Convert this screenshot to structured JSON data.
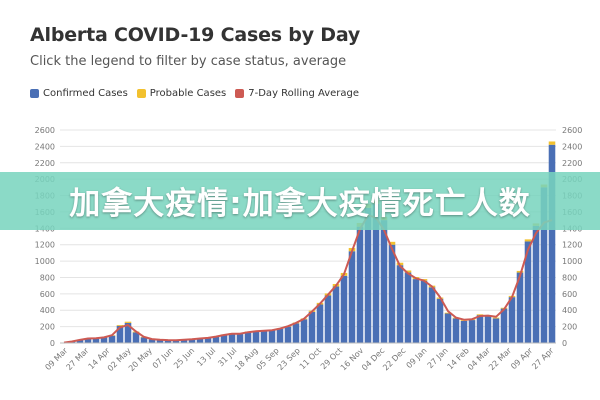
{
  "chart_data": {
    "type": "bar",
    "title": "Alberta COVID-19 Cases by Day",
    "subtitle": "Click the legend to filter by case status, average",
    "legend_position": "top-left",
    "grid": true,
    "ylim": [
      0,
      2600
    ],
    "y_ticks": [
      0,
      200,
      400,
      600,
      800,
      1000,
      1200,
      1400,
      1600,
      1800,
      2000,
      2200,
      2400,
      2600
    ],
    "x_tick_labels": [
      "09 Mar",
      "27 Mar",
      "14 Apr",
      "02 May",
      "20 May",
      "07 Jun",
      "25 Jun",
      "13 Jul",
      "31 Jul",
      "18 Aug",
      "05 Sep",
      "23 Sep",
      "11 Oct",
      "29 Oct",
      "16 Nov",
      "04 Dec",
      "22 Dec",
      "09 Jan",
      "27 Jan",
      "14 Feb",
      "04 Mar",
      "22 Mar",
      "09 Apr",
      "27 Apr"
    ],
    "series": [
      {
        "name": "Confirmed Cases",
        "color": "#4a6fb5",
        "render": "bar",
        "values": [
          5,
          20,
          40,
          60,
          55,
          70,
          90,
          210,
          245,
          130,
          70,
          45,
          40,
          35,
          30,
          40,
          45,
          55,
          60,
          75,
          100,
          115,
          110,
          135,
          145,
          150,
          155,
          175,
          200,
          240,
          290,
          380,
          470,
          580,
          690,
          820,
          1120,
          1420,
          1650,
          1700,
          1500,
          1200,
          950,
          860,
          780,
          760,
          680,
          540,
          360,
          300,
          270,
          280,
          340,
          330,
          300,
          420,
          560,
          860,
          1240,
          1430,
          1900,
          2420
        ]
      },
      {
        "name": "Probable Cases",
        "color": "#f2c12e",
        "render": "bar",
        "values": [
          0,
          0,
          0,
          0,
          0,
          0,
          5,
          10,
          15,
          10,
          5,
          0,
          0,
          0,
          0,
          0,
          0,
          0,
          0,
          5,
          5,
          5,
          5,
          5,
          5,
          5,
          5,
          5,
          5,
          10,
          10,
          15,
          20,
          25,
          30,
          35,
          40,
          45,
          45,
          45,
          40,
          35,
          30,
          25,
          25,
          20,
          20,
          15,
          10,
          10,
          10,
          10,
          10,
          10,
          10,
          10,
          15,
          20,
          25,
          30,
          35,
          40
        ]
      },
      {
        "name": "7-Day Rolling Average",
        "color": "#cd5a53",
        "render": "line",
        "values": [
          5,
          18,
          38,
          55,
          57,
          68,
          95,
          190,
          220,
          140,
          75,
          48,
          40,
          36,
          34,
          40,
          46,
          55,
          62,
          78,
          98,
          112,
          114,
          132,
          143,
          150,
          156,
          176,
          205,
          245,
          295,
          385,
          480,
          590,
          700,
          840,
          1120,
          1390,
          1560,
          1530,
          1380,
          1150,
          940,
          850,
          790,
          760,
          690,
          560,
          390,
          310,
          285,
          290,
          330,
          335,
          320,
          410,
          560,
          820,
          1140,
          1340,
          1470,
          1500
        ]
      }
    ]
  },
  "overlay": {
    "banner_text": "加拿大疫情:加拿大疫情死亡人数"
  }
}
